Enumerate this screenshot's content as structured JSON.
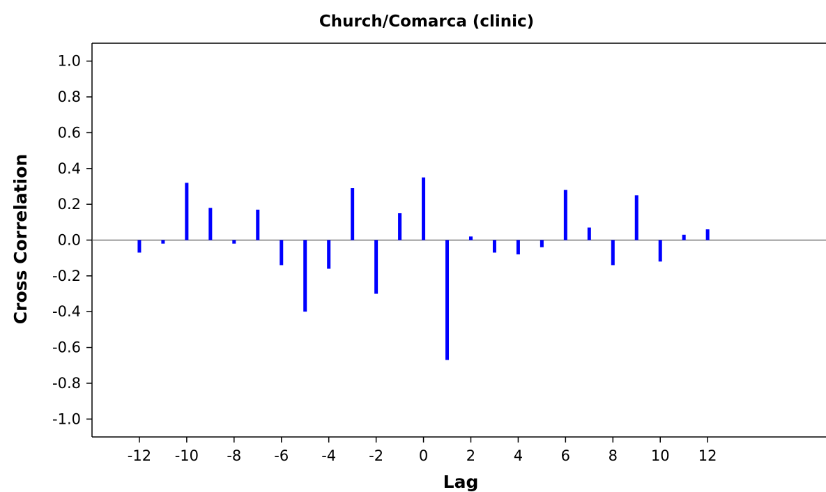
{
  "chart_data": {
    "type": "bar",
    "title": "Church/Comarca (clinic)",
    "xlabel": "Lag",
    "ylabel": "Cross Correlation",
    "xlim": [
      -14,
      17
    ],
    "ylim": [
      -1.1,
      1.1
    ],
    "x_ticks": [
      -12,
      -10,
      -8,
      -6,
      -4,
      -2,
      0,
      2,
      4,
      6,
      8,
      10,
      12
    ],
    "x_tick_labels": [
      "-12",
      "-10",
      "-8",
      "-6",
      "-4",
      "-2",
      "0",
      "2",
      "4",
      "6",
      "8",
      "10",
      "12"
    ],
    "y_ticks": [
      1.0,
      0.8,
      0.6,
      0.4,
      0.2,
      0.0,
      -0.2,
      -0.4,
      -0.6,
      -0.8,
      -1.0
    ],
    "y_tick_labels": [
      "1.0",
      "0.8",
      "0.6",
      "0.4",
      "0.2",
      "0.0",
      "-0.2",
      "-0.4",
      "-0.6",
      "-0.8",
      "-1.0"
    ],
    "bar_color": "#0000ff",
    "grid": false,
    "series": [
      {
        "x": [
          -12,
          -11,
          -10,
          -9,
          -8,
          -7,
          -6,
          -5,
          -4,
          -3,
          -2,
          -1,
          0,
          1,
          2,
          3,
          4,
          5,
          6,
          7,
          8,
          9,
          10,
          11,
          12
        ],
        "values": [
          -0.07,
          -0.02,
          0.32,
          0.18,
          -0.02,
          0.17,
          -0.14,
          -0.4,
          -0.16,
          0.29,
          -0.3,
          0.15,
          0.35,
          -0.67,
          0.02,
          -0.07,
          -0.08,
          -0.04,
          0.28,
          0.07,
          -0.14,
          0.25,
          -0.12,
          0.03,
          0.06
        ]
      }
    ]
  }
}
